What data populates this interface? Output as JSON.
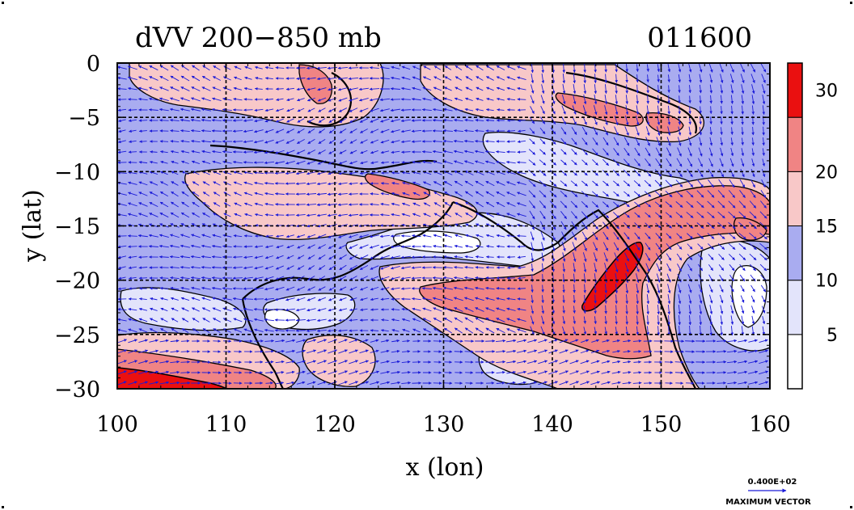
{
  "title": {
    "left": "dVV 200−850 mb",
    "right": "011600"
  },
  "chart_data": {
    "type": "heatmap",
    "variable": "dVV 200-850 mb (vertical wind shear magnitude with shear vectors)",
    "xlabel": "x (lon)",
    "ylabel": "y (lat)",
    "xlim": [
      100,
      160
    ],
    "ylim": [
      -30,
      0
    ],
    "x_ticks": [
      {
        "value": 100,
        "label": "100"
      },
      {
        "value": 110,
        "label": "110"
      },
      {
        "value": 120,
        "label": "120"
      },
      {
        "value": 130,
        "label": "130"
      },
      {
        "value": 140,
        "label": "140"
      },
      {
        "value": 150,
        "label": "150"
      },
      {
        "value": 160,
        "label": "160"
      }
    ],
    "y_ticks": [
      {
        "value": 0,
        "label": "0"
      },
      {
        "value": -5,
        "label": "−5"
      },
      {
        "value": -10,
        "label": "−10"
      },
      {
        "value": -15,
        "label": "−15"
      },
      {
        "value": -20,
        "label": "−20"
      },
      {
        "value": -25,
        "label": "−25"
      },
      {
        "value": -30,
        "label": "−30"
      }
    ],
    "grid_lon": [
      110,
      120,
      130,
      140,
      150
    ],
    "grid_lat": [
      -5,
      -10,
      -15,
      -20,
      -25
    ],
    "colorbar": {
      "levels": [
        0,
        5,
        10,
        15,
        20,
        25,
        35
      ],
      "tick_labels": [
        {
          "value": 5,
          "label": "5"
        },
        {
          "value": 10,
          "label": "10"
        },
        {
          "value": 15,
          "label": "15"
        },
        {
          "value": 20,
          "label": "20"
        },
        {
          "value": 30,
          "label": "30"
        }
      ],
      "colors": [
        "#ffffff",
        "#e3e4fb",
        "#a9acf0",
        "#f8c8c8",
        "#f08484",
        "#ea1010"
      ]
    },
    "vector_legend": {
      "magnitude": "0.400E+02",
      "label": "MAXIMUM VECTOR"
    },
    "features": [
      {
        "name": "shear maximum (>30)",
        "lon": 146,
        "lat": -19
      },
      {
        "name": "strong shear band (>25)",
        "lon": 101,
        "lat": -29
      }
    ]
  }
}
